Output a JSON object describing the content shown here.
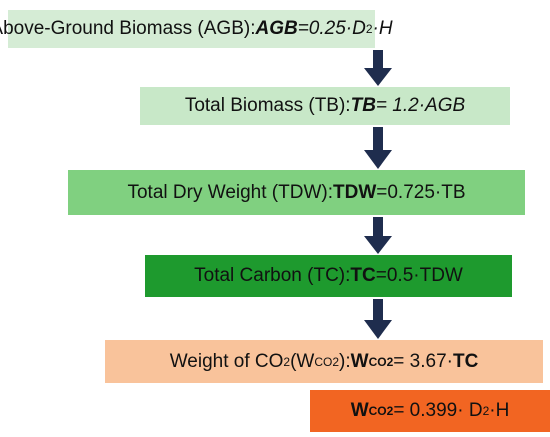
{
  "boxes": [
    {
      "parts": [
        "Above-Ground Biomass (AGB): ",
        "AGB",
        "=0.25·D",
        "2",
        "·H"
      ]
    },
    {
      "parts": [
        "Total Biomass (TB): ",
        "TB",
        "= 1.2·AGB"
      ]
    },
    {
      "parts": [
        "Total Dry Weight (TDW): ",
        "TDW",
        "=0.725·TB"
      ]
    },
    {
      "parts": [
        "Total Carbon (TC): ",
        "TC",
        "=0.5·TDW"
      ]
    },
    {
      "parts": [
        "Weight of CO",
        "2",
        " (W",
        "CO2",
        "): ",
        "W",
        "CO2",
        " = 3.67·",
        "TC"
      ]
    },
    {
      "parts": [
        "W",
        "CO2",
        " = 0.399· D",
        "2",
        "·H"
      ]
    }
  ]
}
